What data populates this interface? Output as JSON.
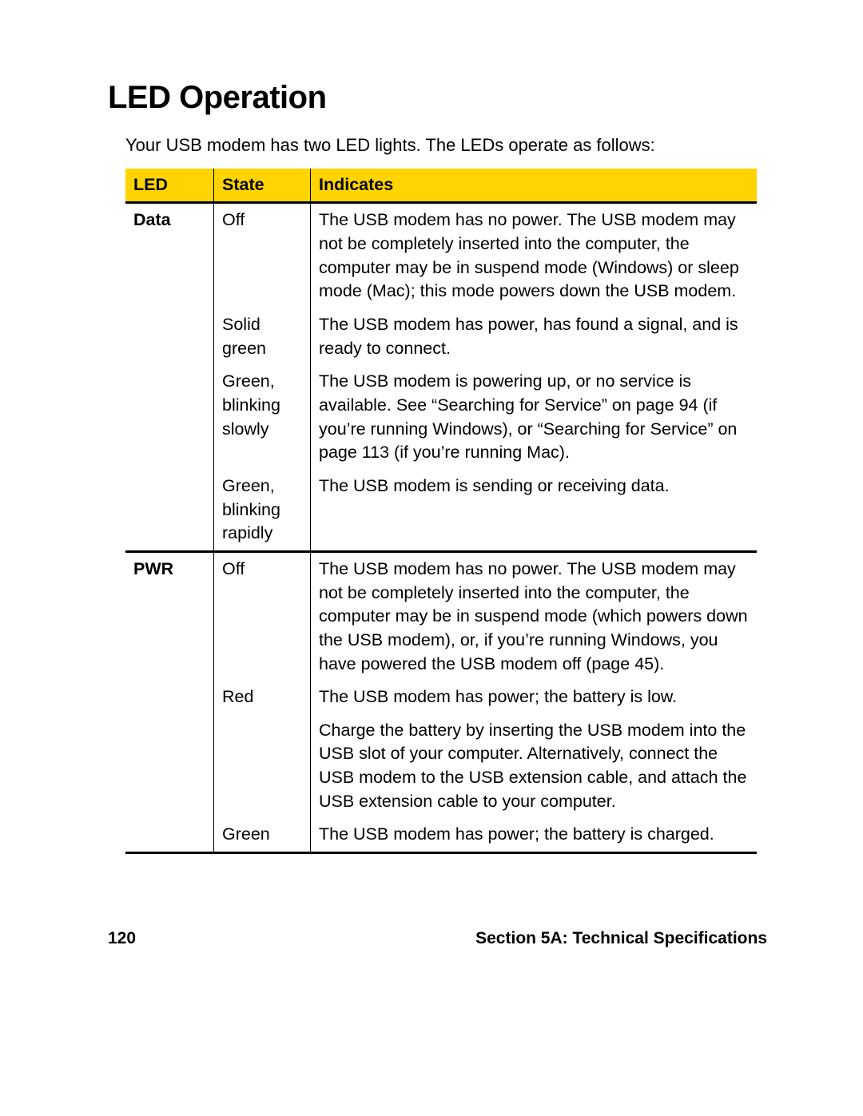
{
  "title": "LED Operation",
  "intro": "Your USB modem has two LED lights. The LEDs operate as follows:",
  "table": {
    "header_bg": "#ffd400",
    "border_color": "#000000",
    "columns": [
      "LED",
      "State",
      "Indicates"
    ],
    "groups": [
      {
        "led": "Data",
        "rows": [
          {
            "state": "Off",
            "indicates": "The USB modem has no power. The USB modem may not be completely inserted into the computer, the computer may be in suspend mode (Windows) or sleep mode (Mac); this mode powers down the USB modem."
          },
          {
            "state": "Solid green",
            "indicates": "The USB modem has power, has found a signal, and is ready to connect."
          },
          {
            "state": "Green, blinking slowly",
            "indicates": "The USB modem is powering up, or no service is available. See “Searching for Service” on page 94 (if you’re running Windows), or “Searching for Service” on page 113 (if you’re running Mac)."
          },
          {
            "state": "Green, blinking rapidly",
            "indicates": "The USB modem is sending or receiving data."
          }
        ]
      },
      {
        "led": "PWR",
        "rows": [
          {
            "state": "Off",
            "indicates": "The USB modem has no power. The USB modem may not be completely inserted into the computer, the computer may be in suspend mode (which powers down the USB modem), or, if you’re running Windows, you have powered the USB modem off (page 45)."
          },
          {
            "state": "Red",
            "indicates": "The USB modem has power; the battery is low."
          },
          {
            "state": "",
            "indicates": "Charge the battery by inserting the USB modem into the USB slot of your computer. Alternatively, connect the USB modem to the USB extension cable, and attach the USB extension cable to your computer."
          },
          {
            "state": "Green",
            "indicates": "The USB modem has power; the battery is charged."
          }
        ]
      }
    ]
  },
  "footer": {
    "page_number": "120",
    "section": "Section 5A: Technical Specifications"
  }
}
